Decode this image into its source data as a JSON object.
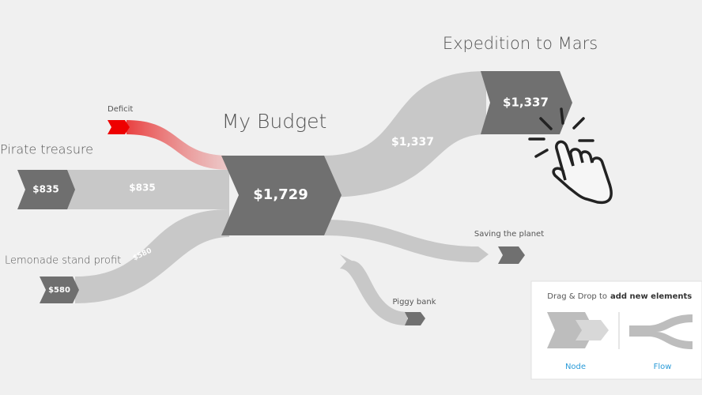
{
  "nodes": [
    {
      "title": "Pirate treasure",
      "value": "$835"
    },
    {
      "title": "Lemonade stand profit",
      "value": "$580"
    },
    {
      "title": "Deficit"
    },
    {
      "title": "My Budget",
      "value": "$1,729"
    },
    {
      "title": "Expedition to Mars",
      "value": "$1,337"
    },
    {
      "title": "Saving the planet"
    },
    {
      "title": "Piggy bank"
    }
  ],
  "flows": [
    {
      "label": "$835"
    },
    {
      "label": "$580"
    },
    {
      "label": "$1,337"
    }
  ],
  "palette": {
    "title": "Drag & Drop to",
    "emphasis": "add new elements",
    "items": [
      "Node",
      "Flow"
    ]
  }
}
